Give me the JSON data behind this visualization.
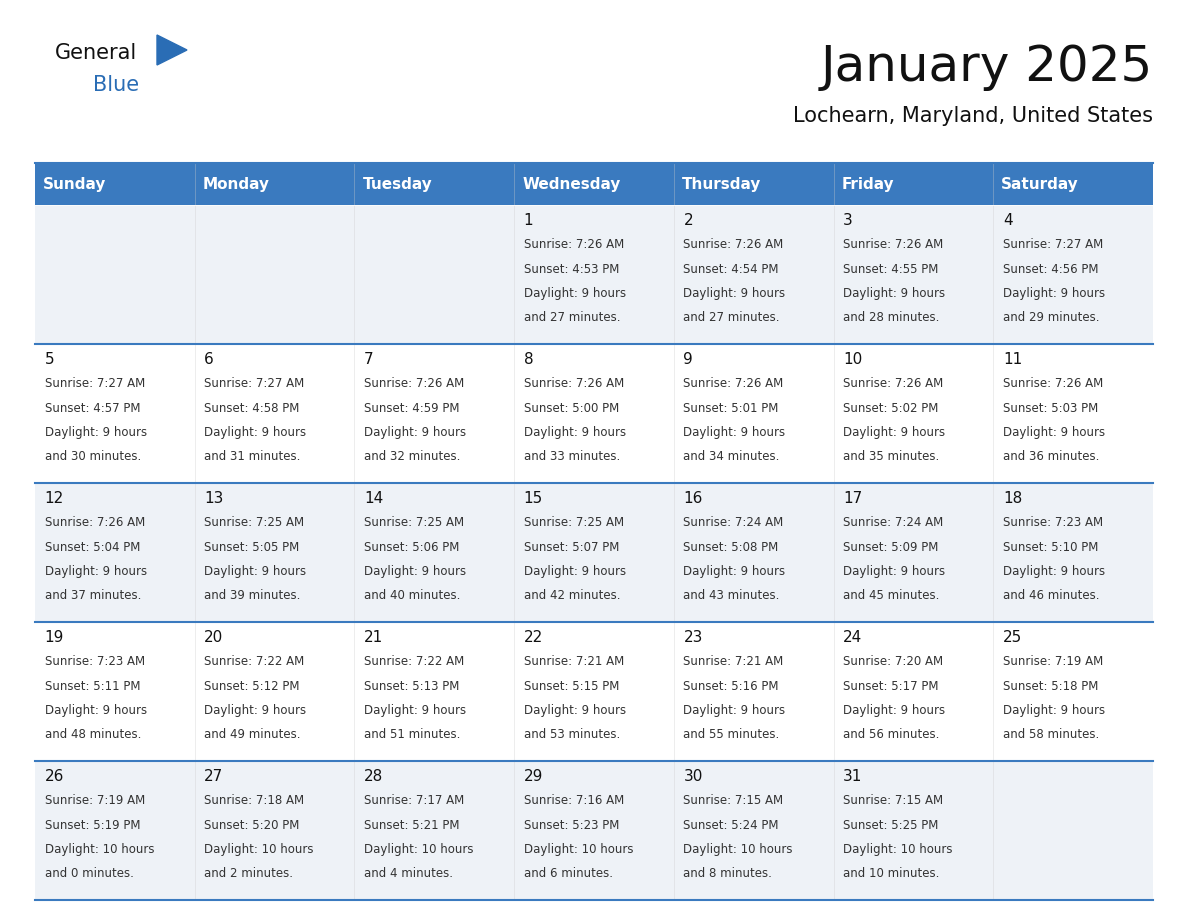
{
  "title": "January 2025",
  "subtitle": "Lochearn, Maryland, United States",
  "header_bg": "#3a7abf",
  "header_text": "#ffffff",
  "row_bg_odd": "#eef2f7",
  "row_bg_even": "#ffffff",
  "separator_color": "#3a7abf",
  "day_number_color": "#111111",
  "cell_text_color": "#333333",
  "days_of_week": [
    "Sunday",
    "Monday",
    "Tuesday",
    "Wednesday",
    "Thursday",
    "Friday",
    "Saturday"
  ],
  "weeks": [
    [
      {
        "day": "",
        "sunrise": "",
        "sunset": "",
        "daylight": ""
      },
      {
        "day": "",
        "sunrise": "",
        "sunset": "",
        "daylight": ""
      },
      {
        "day": "",
        "sunrise": "",
        "sunset": "",
        "daylight": ""
      },
      {
        "day": "1",
        "sunrise": "7:26 AM",
        "sunset": "4:53 PM",
        "daylight": "9 hours and 27 minutes."
      },
      {
        "day": "2",
        "sunrise": "7:26 AM",
        "sunset": "4:54 PM",
        "daylight": "9 hours and 27 minutes."
      },
      {
        "day": "3",
        "sunrise": "7:26 AM",
        "sunset": "4:55 PM",
        "daylight": "9 hours and 28 minutes."
      },
      {
        "day": "4",
        "sunrise": "7:27 AM",
        "sunset": "4:56 PM",
        "daylight": "9 hours and 29 minutes."
      }
    ],
    [
      {
        "day": "5",
        "sunrise": "7:27 AM",
        "sunset": "4:57 PM",
        "daylight": "9 hours and 30 minutes."
      },
      {
        "day": "6",
        "sunrise": "7:27 AM",
        "sunset": "4:58 PM",
        "daylight": "9 hours and 31 minutes."
      },
      {
        "day": "7",
        "sunrise": "7:26 AM",
        "sunset": "4:59 PM",
        "daylight": "9 hours and 32 minutes."
      },
      {
        "day": "8",
        "sunrise": "7:26 AM",
        "sunset": "5:00 PM",
        "daylight": "9 hours and 33 minutes."
      },
      {
        "day": "9",
        "sunrise": "7:26 AM",
        "sunset": "5:01 PM",
        "daylight": "9 hours and 34 minutes."
      },
      {
        "day": "10",
        "sunrise": "7:26 AM",
        "sunset": "5:02 PM",
        "daylight": "9 hours and 35 minutes."
      },
      {
        "day": "11",
        "sunrise": "7:26 AM",
        "sunset": "5:03 PM",
        "daylight": "9 hours and 36 minutes."
      }
    ],
    [
      {
        "day": "12",
        "sunrise": "7:26 AM",
        "sunset": "5:04 PM",
        "daylight": "9 hours and 37 minutes."
      },
      {
        "day": "13",
        "sunrise": "7:25 AM",
        "sunset": "5:05 PM",
        "daylight": "9 hours and 39 minutes."
      },
      {
        "day": "14",
        "sunrise": "7:25 AM",
        "sunset": "5:06 PM",
        "daylight": "9 hours and 40 minutes."
      },
      {
        "day": "15",
        "sunrise": "7:25 AM",
        "sunset": "5:07 PM",
        "daylight": "9 hours and 42 minutes."
      },
      {
        "day": "16",
        "sunrise": "7:24 AM",
        "sunset": "5:08 PM",
        "daylight": "9 hours and 43 minutes."
      },
      {
        "day": "17",
        "sunrise": "7:24 AM",
        "sunset": "5:09 PM",
        "daylight": "9 hours and 45 minutes."
      },
      {
        "day": "18",
        "sunrise": "7:23 AM",
        "sunset": "5:10 PM",
        "daylight": "9 hours and 46 minutes."
      }
    ],
    [
      {
        "day": "19",
        "sunrise": "7:23 AM",
        "sunset": "5:11 PM",
        "daylight": "9 hours and 48 minutes."
      },
      {
        "day": "20",
        "sunrise": "7:22 AM",
        "sunset": "5:12 PM",
        "daylight": "9 hours and 49 minutes."
      },
      {
        "day": "21",
        "sunrise": "7:22 AM",
        "sunset": "5:13 PM",
        "daylight": "9 hours and 51 minutes."
      },
      {
        "day": "22",
        "sunrise": "7:21 AM",
        "sunset": "5:15 PM",
        "daylight": "9 hours and 53 minutes."
      },
      {
        "day": "23",
        "sunrise": "7:21 AM",
        "sunset": "5:16 PM",
        "daylight": "9 hours and 55 minutes."
      },
      {
        "day": "24",
        "sunrise": "7:20 AM",
        "sunset": "5:17 PM",
        "daylight": "9 hours and 56 minutes."
      },
      {
        "day": "25",
        "sunrise": "7:19 AM",
        "sunset": "5:18 PM",
        "daylight": "9 hours and 58 minutes."
      }
    ],
    [
      {
        "day": "26",
        "sunrise": "7:19 AM",
        "sunset": "5:19 PM",
        "daylight": "10 hours and 0 minutes."
      },
      {
        "day": "27",
        "sunrise": "7:18 AM",
        "sunset": "5:20 PM",
        "daylight": "10 hours and 2 minutes."
      },
      {
        "day": "28",
        "sunrise": "7:17 AM",
        "sunset": "5:21 PM",
        "daylight": "10 hours and 4 minutes."
      },
      {
        "day": "29",
        "sunrise": "7:16 AM",
        "sunset": "5:23 PM",
        "daylight": "10 hours and 6 minutes."
      },
      {
        "day": "30",
        "sunrise": "7:15 AM",
        "sunset": "5:24 PM",
        "daylight": "10 hours and 8 minutes."
      },
      {
        "day": "31",
        "sunrise": "7:15 AM",
        "sunset": "5:25 PM",
        "daylight": "10 hours and 10 minutes."
      },
      {
        "day": "",
        "sunrise": "",
        "sunset": "",
        "daylight": ""
      }
    ]
  ]
}
